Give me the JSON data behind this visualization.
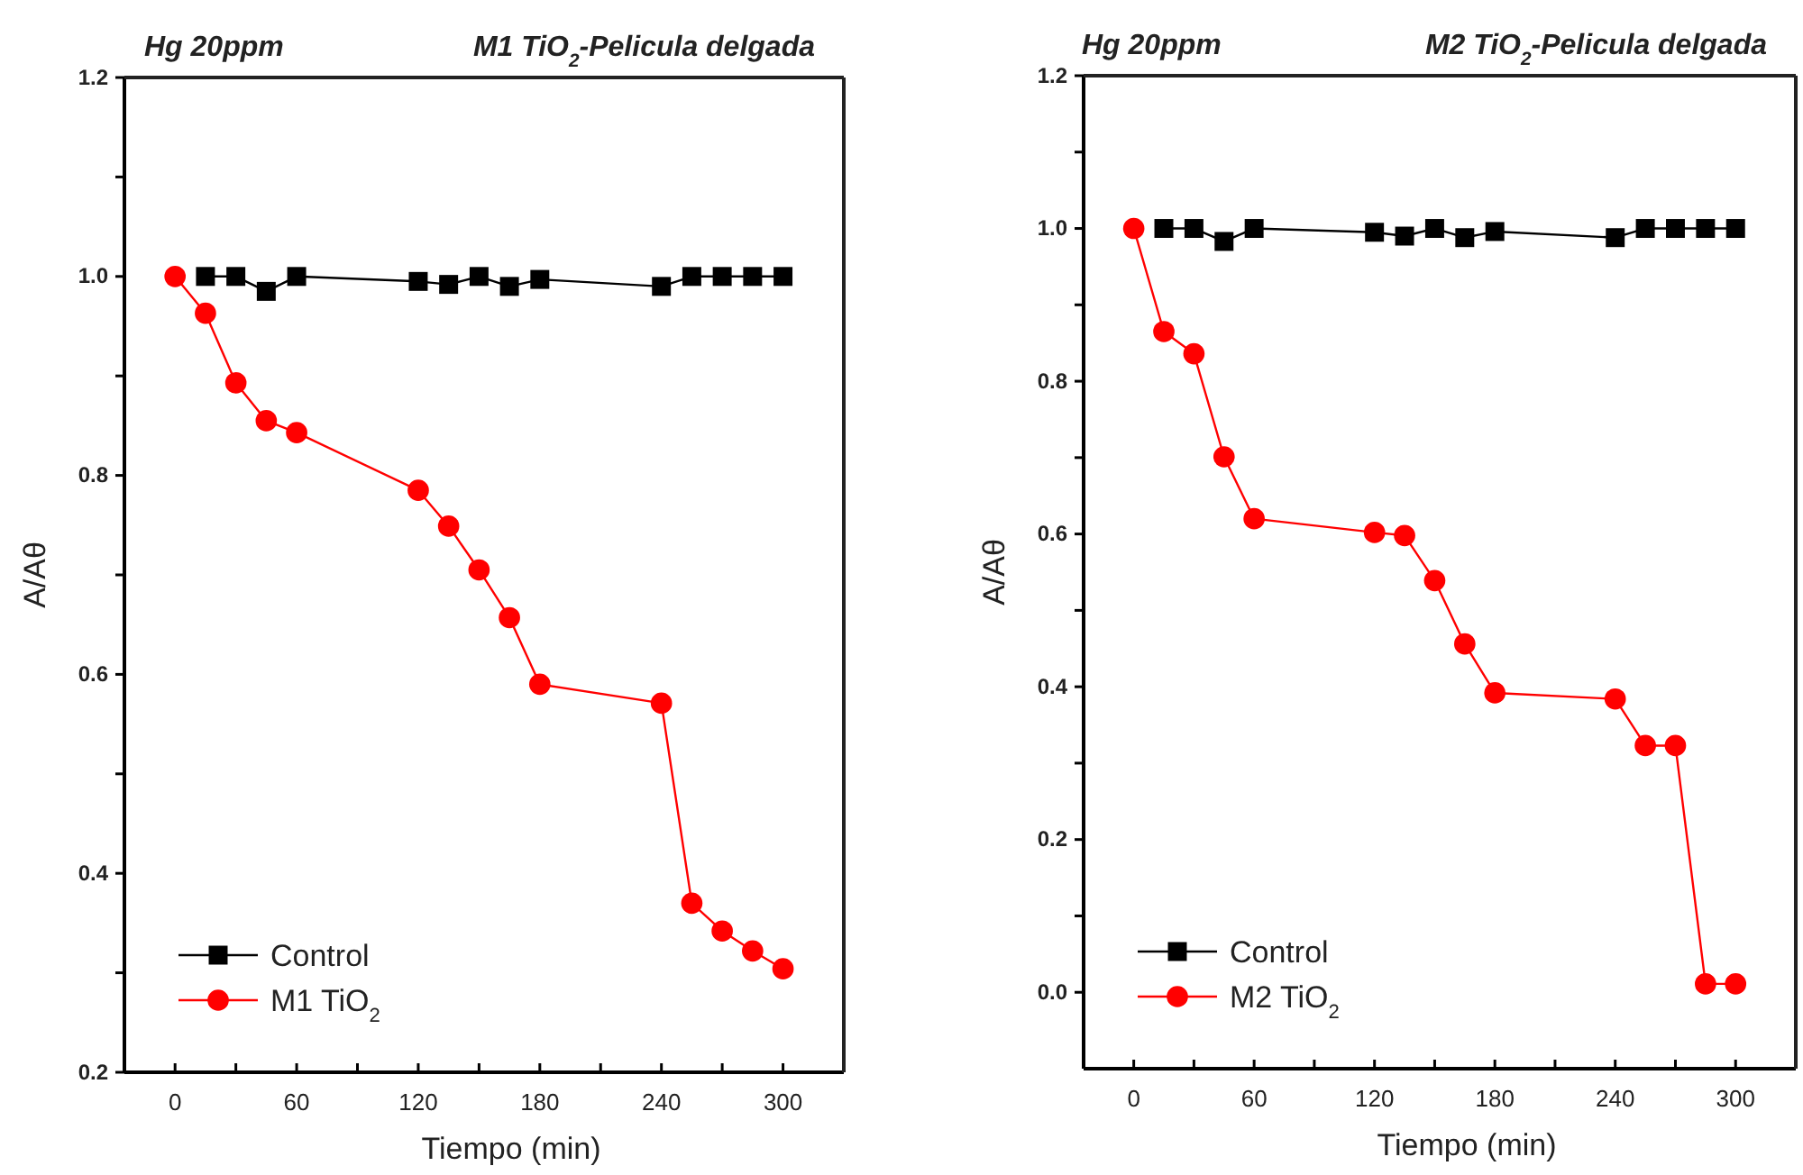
{
  "chart_data": [
    {
      "type": "line",
      "title": "Hg 20ppm",
      "subtitle": "M1 TiO$_{2}$-Pelicula delgada",
      "xlabel": "Tiempo (min)",
      "ylabel": "A/Aθ",
      "x": [
        0,
        15,
        30,
        45,
        60,
        120,
        135,
        150,
        165,
        180,
        240,
        255,
        270,
        285,
        300
      ],
      "series": [
        {
          "name": "Control",
          "color": "#000000",
          "marker": "square",
          "values": [
            null,
            1.0,
            1.0,
            0.985,
            1.0,
            0.995,
            0.992,
            1.0,
            0.99,
            0.997,
            0.99,
            1.0,
            1.0,
            1.0,
            1.0
          ]
        },
        {
          "name": "M1 TiO$_{2}$",
          "color": "#ff0000",
          "marker": "circle",
          "values": [
            1.0,
            0.963,
            0.893,
            0.855,
            0.843,
            0.785,
            0.749,
            0.705,
            0.657,
            0.59,
            0.571,
            0.37,
            0.342,
            0.322,
            0.304
          ]
        }
      ],
      "xlim": [
        -25,
        330
      ],
      "ylim": [
        0.2,
        1.2
      ],
      "xticks": [
        0,
        {
          "value": 30,
          "label": null
        },
        60,
        {
          "value": 90,
          "label": null
        },
        120,
        {
          "value": 150,
          "label": null
        },
        180,
        {
          "value": 210,
          "label": null
        },
        240,
        {
          "value": 270,
          "label": null
        },
        300
      ],
      "yticks": [
        {
          "value": 0.2,
          "label": "0.2"
        },
        {
          "value": 0.3,
          "label": null
        },
        {
          "value": 0.4,
          "label": "0.4"
        },
        {
          "value": 0.5,
          "label": null
        },
        {
          "value": 0.6,
          "label": "0.6"
        },
        {
          "value": 0.7,
          "label": null
        },
        {
          "value": 0.8,
          "label": "0.8"
        },
        {
          "value": 0.9,
          "label": null
        },
        {
          "value": 1.0,
          "label": "1.0"
        },
        {
          "value": 1.1,
          "label": null
        },
        {
          "value": 1.2,
          "label": "1.2"
        }
      ],
      "grid": false,
      "legend": "bottom left"
    },
    {
      "type": "line",
      "title": "Hg 20ppm",
      "subtitle": "M2 TiO$_{2}$-Pelicula delgada",
      "xlabel": "Tiempo (min)",
      "ylabel": "A/Aθ",
      "x": [
        0,
        15,
        30,
        45,
        60,
        120,
        135,
        150,
        165,
        180,
        240,
        255,
        270,
        285,
        300
      ],
      "series": [
        {
          "name": "Control",
          "color": "#000000",
          "marker": "square",
          "values": [
            null,
            1.0,
            1.0,
            0.983,
            1.0,
            0.995,
            0.99,
            1.0,
            0.988,
            0.996,
            0.988,
            1.0,
            1.0,
            1.0,
            1.0
          ]
        },
        {
          "name": "M2 TiO$_{2}$",
          "color": "#ff0000",
          "marker": "circle",
          "values": [
            1.0,
            0.865,
            0.836,
            0.701,
            0.62,
            0.602,
            0.598,
            0.539,
            0.456,
            0.392,
            0.384,
            0.323,
            0.323,
            0.011,
            0.011
          ]
        }
      ],
      "xlim": [
        -25,
        330
      ],
      "ylim": [
        -0.1,
        1.2
      ],
      "xticks": [
        0,
        {
          "value": 30,
          "label": null
        },
        60,
        {
          "value": 90,
          "label": null
        },
        120,
        {
          "value": 150,
          "label": null
        },
        180,
        {
          "value": 210,
          "label": null
        },
        240,
        {
          "value": 270,
          "label": null
        },
        300
      ],
      "yticks": [
        {
          "value": 0.0,
          "label": "0.0"
        },
        {
          "value": 0.1,
          "label": null
        },
        {
          "value": 0.2,
          "label": "0.2"
        },
        {
          "value": 0.3,
          "label": null
        },
        {
          "value": 0.4,
          "label": "0.4"
        },
        {
          "value": 0.5,
          "label": null
        },
        {
          "value": 0.6,
          "label": "0.6"
        },
        {
          "value": 0.7,
          "label": null
        },
        {
          "value": 0.8,
          "label": "0.8"
        },
        {
          "value": 0.9,
          "label": null
        },
        {
          "value": 1.0,
          "label": "1.0"
        },
        {
          "value": 1.1,
          "label": null
        },
        {
          "value": 1.2,
          "label": "1.2"
        }
      ],
      "grid": false,
      "legend": "bottom left"
    }
  ]
}
